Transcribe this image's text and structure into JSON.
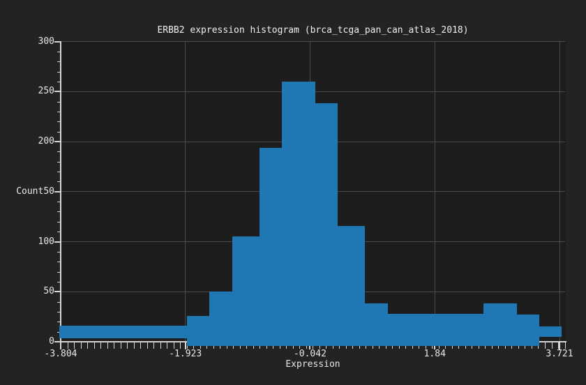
{
  "chart_data": {
    "type": "bar",
    "subtype": "histogram",
    "title": "ERBB2 expression histogram (brca_tcga_pan_can_atlas_2018)",
    "xlabel": "Expression",
    "ylabel": "Count",
    "series_name": "ERBB2 expression",
    "bar_color": "#1f77b4",
    "background_color": "#232323",
    "plot_background_color": "#1d1d1d",
    "grid_color": "#4a4a4a",
    "axis_color": "#d6d6d6",
    "text_color": "#e8e8e8",
    "grid_on": true,
    "legend": "none",
    "xlim": [
      -3.826,
      3.83
    ],
    "ylim": [
      0,
      300
    ],
    "x_tick_values": [
      -3.804,
      -1.923,
      -0.042,
      1.84,
      3.721
    ],
    "x_tick_labels": [
      "-3.804",
      "-1.923",
      "-0.042",
      "1.84",
      "3.721"
    ],
    "y_tick_values": [
      0,
      50,
      100,
      150,
      200,
      250,
      300
    ],
    "y_tick_labels": [
      "0",
      "50",
      "100",
      "150",
      "200",
      "250",
      "300"
    ],
    "y_tick_display": [
      "0",
      "50",
      "100",
      "Count50",
      "200",
      "250",
      "300"
    ],
    "x_minor_tick_step": 0.1,
    "y_minor_tick_step": 10,
    "bars": [
      {
        "x0": -3.826,
        "x1": -1.896,
        "count": 16,
        "base": 3.5
      },
      {
        "x0": -1.896,
        "x1": -1.562,
        "count": 26,
        "base": -4.5
      },
      {
        "x0": -1.562,
        "x1": -1.218,
        "count": 50,
        "base": -4.5
      },
      {
        "x0": -1.218,
        "x1": -0.808,
        "count": 105,
        "base": -4.5
      },
      {
        "x0": -0.808,
        "x1": -0.464,
        "count": 194,
        "base": -4.5
      },
      {
        "x0": -0.464,
        "x1": 0.034,
        "count": 260,
        "base": -4.5
      },
      {
        "x0": 0.034,
        "x1": 0.374,
        "count": 238,
        "base": -4.5
      },
      {
        "x0": 0.374,
        "x1": 0.787,
        "count": 116,
        "base": -4.5
      },
      {
        "x0": 0.787,
        "x1": 1.128,
        "count": 38,
        "base": -4.5
      },
      {
        "x0": 1.128,
        "x1": 2.57,
        "count": 28,
        "base": -4.5
      },
      {
        "x0": 2.57,
        "x1": 3.078,
        "count": 38,
        "base": -4.5
      },
      {
        "x0": 3.078,
        "x1": 3.412,
        "count": 27,
        "base": -4.5
      },
      {
        "x0": 3.412,
        "x1": 3.752,
        "count": 15,
        "base": 4.7
      }
    ]
  }
}
